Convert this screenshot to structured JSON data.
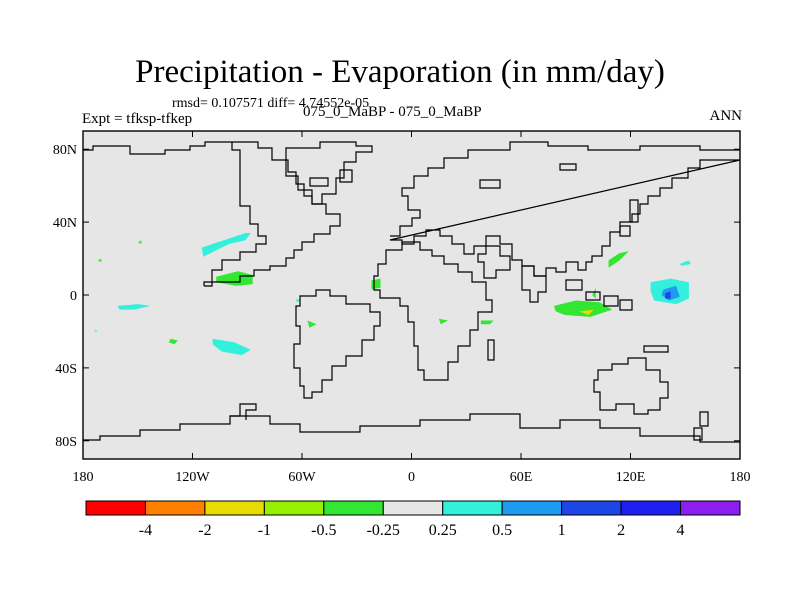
{
  "chart_data": {
    "type": "heatmap",
    "title": "Precipitation - Evaporation (in mm/day)",
    "stats_text": "rmsd= 0.107571 diff= 4.74552e-05",
    "left_subtitle": "Expt = tfksp-tfkep",
    "center_subtitle": "075_0_MaBP - 075_0_MaBP",
    "right_subtitle": "ANN",
    "x_ticks": [
      {
        "value": -180,
        "label": "180"
      },
      {
        "value": -120,
        "label": "120W"
      },
      {
        "value": -60,
        "label": "60W"
      },
      {
        "value": 0,
        "label": "0"
      },
      {
        "value": 60,
        "label": "60E"
      },
      {
        "value": 120,
        "label": "120E"
      },
      {
        "value": 180,
        "label": "180"
      }
    ],
    "y_ticks": [
      {
        "value": 80,
        "label": "80N"
      },
      {
        "value": 40,
        "label": "40N"
      },
      {
        "value": 0,
        "label": "0"
      },
      {
        "value": -40,
        "label": "40S"
      },
      {
        "value": -80,
        "label": "80S"
      }
    ],
    "xlim": [
      -180,
      180
    ],
    "ylim": [
      -90,
      90
    ],
    "background_color": "#e6e6e6",
    "colorbar": {
      "colors": [
        "#ff0000",
        "#ff8000",
        "#e6dc00",
        "#96f000",
        "#32e632",
        "#e6e6e6",
        "#32f0dc",
        "#1e9bf0",
        "#1e46e6",
        "#1e1ef0",
        "#8c1ef0"
      ],
      "labels": [
        "-4",
        "-2",
        "-1",
        "-0.5",
        "-0.25",
        "0.25",
        "0.5",
        "1",
        "2",
        "4"
      ]
    },
    "anomalies": [
      {
        "color": "#32f0dc",
        "points": [
          [
            -115,
            26
          ],
          [
            -100,
            31
          ],
          [
            -91,
            34
          ],
          [
            -88,
            34
          ],
          [
            -91,
            30
          ],
          [
            -100,
            28
          ],
          [
            -114,
            21
          ]
        ]
      },
      {
        "color": "#32e632",
        "points": [
          [
            -107,
            10
          ],
          [
            -95,
            13
          ],
          [
            -87,
            11
          ],
          [
            -87,
            6
          ],
          [
            -96,
            5
          ],
          [
            -107,
            7
          ]
        ]
      },
      {
        "color": "#32f0dc",
        "points": [
          [
            -161,
            -6
          ],
          [
            -150,
            -5
          ],
          [
            -143,
            -6
          ],
          [
            -152,
            -8
          ],
          [
            -160,
            -8
          ]
        ]
      },
      {
        "color": "#32f0dc",
        "points": [
          [
            -109,
            -24
          ],
          [
            -97,
            -26
          ],
          [
            -88,
            -30
          ],
          [
            -93,
            -33
          ],
          [
            -104,
            -31
          ],
          [
            -109,
            -27
          ]
        ]
      },
      {
        "color": "#32e632",
        "points": [
          [
            -132,
            -24
          ],
          [
            -128,
            -25
          ],
          [
            -130,
            -27
          ],
          [
            -133,
            -26
          ]
        ]
      },
      {
        "color": "#32e632",
        "points": [
          [
            -150,
            29
          ],
          [
            -148,
            30
          ],
          [
            -148,
            28
          ]
        ]
      },
      {
        "color": "#32e632",
        "points": [
          [
            -57,
            -14
          ],
          [
            -52,
            -16
          ],
          [
            -56,
            -18
          ]
        ]
      },
      {
        "color": "#32e632",
        "points": [
          [
            -22,
            8
          ],
          [
            -17,
            9
          ],
          [
            -17,
            4
          ],
          [
            -22,
            3
          ]
        ]
      },
      {
        "color": "#32e632",
        "points": [
          [
            78,
            -6
          ],
          [
            90,
            -3
          ],
          [
            103,
            -4
          ],
          [
            110,
            -8
          ],
          [
            98,
            -12
          ],
          [
            84,
            -11
          ],
          [
            79,
            -9
          ]
        ]
      },
      {
        "color": "#e6dc00",
        "points": [
          [
            92,
            -9
          ],
          [
            100,
            -8
          ],
          [
            97,
            -11
          ]
        ]
      },
      {
        "color": "#32e632",
        "points": [
          [
            108,
            19
          ],
          [
            114,
            23
          ],
          [
            119,
            24
          ],
          [
            114,
            19
          ],
          [
            108,
            15
          ]
        ]
      },
      {
        "color": "#32e632",
        "points": [
          [
            99,
            0
          ],
          [
            101,
            4
          ],
          [
            101,
            -2
          ]
        ]
      },
      {
        "color": "#32f0dc",
        "points": [
          [
            131,
            7
          ],
          [
            142,
            9
          ],
          [
            152,
            7
          ],
          [
            152,
            -2
          ],
          [
            145,
            -5
          ],
          [
            133,
            -3
          ],
          [
            131,
            2
          ]
        ]
      },
      {
        "color": "#1e9bf0",
        "points": [
          [
            138,
            3
          ],
          [
            145,
            5
          ],
          [
            147,
            -1
          ],
          [
            141,
            -3
          ],
          [
            137,
            0
          ]
        ]
      },
      {
        "color": "#1e46e6",
        "points": [
          [
            139,
            1
          ],
          [
            142,
            2
          ],
          [
            142,
            -2
          ],
          [
            139,
            -2
          ]
        ]
      },
      {
        "color": "#32e632",
        "points": [
          [
            38,
            -14
          ],
          [
            45,
            -14
          ],
          [
            43,
            -16
          ],
          [
            38,
            -16
          ]
        ]
      },
      {
        "color": "#32e632",
        "points": [
          [
            15,
            -13
          ],
          [
            20,
            -14
          ],
          [
            16,
            -16
          ]
        ]
      },
      {
        "color": "#32f0dc",
        "points": [
          [
            147,
            17
          ],
          [
            152,
            19
          ],
          [
            153,
            17
          ],
          [
            148,
            16
          ]
        ]
      },
      {
        "color": "#32f0dc",
        "points": [
          [
            -63,
            -2
          ],
          [
            -61,
            -3
          ],
          [
            -63,
            -4
          ]
        ]
      },
      {
        "color": "#32e632",
        "points": [
          [
            -172,
            19
          ],
          [
            -170,
            20
          ],
          [
            -170,
            18
          ]
        ]
      },
      {
        "color": "#32f0dc",
        "points": [
          [
            -173,
            -19
          ],
          [
            -172,
            -20
          ],
          [
            -174,
            -20
          ]
        ]
      }
    ]
  }
}
